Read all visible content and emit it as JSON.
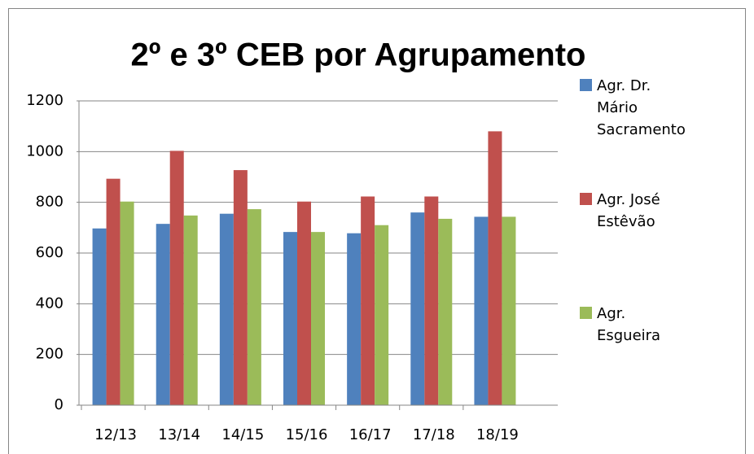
{
  "chart_data": {
    "type": "bar",
    "title": "2º e 3º CEB por Agrupamento",
    "categories": [
      "12/13",
      "13/14",
      "14/15",
      "15/16",
      "16/17",
      "17/18",
      "18/19"
    ],
    "series": [
      {
        "name": "Agr. Dr. Mário Sacramento",
        "color": "#4f81bd",
        "values": [
          697,
          715,
          755,
          683,
          678,
          760,
          743
        ]
      },
      {
        "name": "Agr. José Estêvão",
        "color": "#c0504d",
        "values": [
          893,
          1003,
          927,
          803,
          823,
          823,
          1080
        ]
      },
      {
        "name": "Agr. Esgueira",
        "color": "#9bbb59",
        "values": [
          803,
          748,
          773,
          683,
          710,
          735,
          743
        ]
      }
    ],
    "ylim": [
      0,
      1200
    ],
    "yticks": [
      0,
      200,
      400,
      600,
      800,
      1000,
      1200
    ],
    "grid": true,
    "legend": "right"
  }
}
